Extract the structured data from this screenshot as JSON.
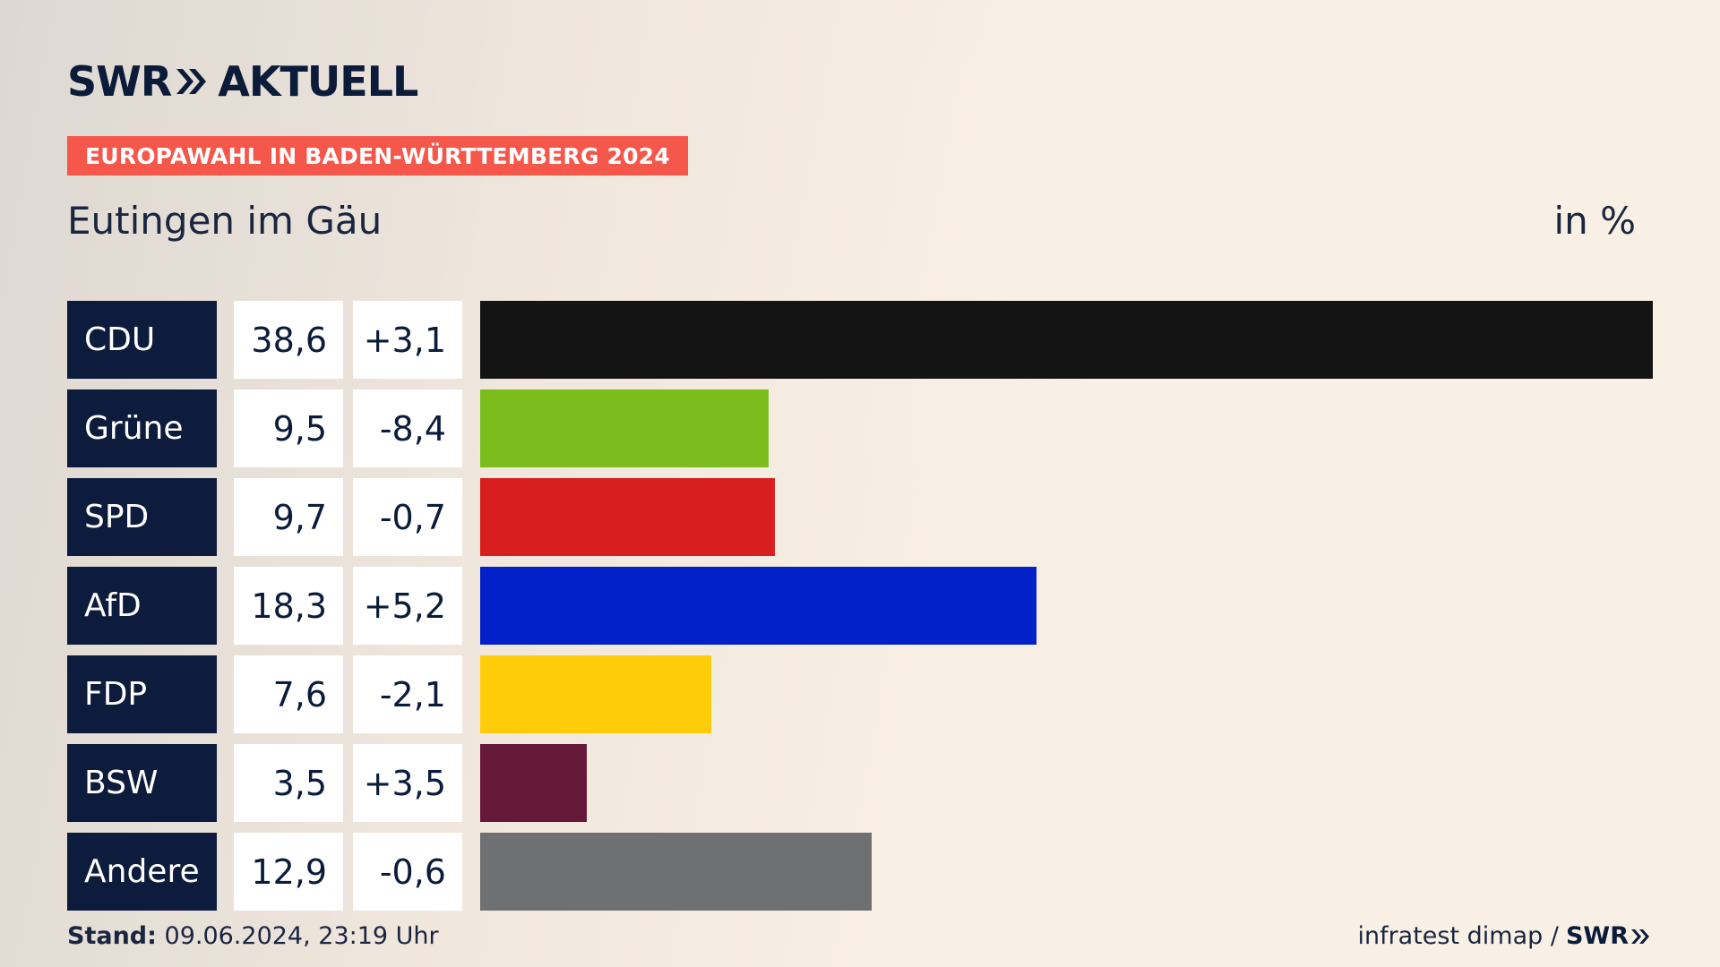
{
  "brand": {
    "name": "SWR",
    "product": "AKTUELL"
  },
  "badge": "EUROPAWAHL IN BADEN-WÜRTTEMBERG 2024",
  "place": "Eutingen im Gäu",
  "unit": "in %",
  "footer": {
    "stand_label": "Stand:",
    "stand_value": "09.06.2024, 23:19 Uhr",
    "source": "infratest dimap /",
    "source_brand": "SWR"
  },
  "chart_data": {
    "type": "bar",
    "orientation": "horizontal",
    "categories": [
      "CDU",
      "Grüne",
      "SPD",
      "AfD",
      "FDP",
      "BSW",
      "Andere"
    ],
    "values": [
      38.6,
      9.5,
      9.7,
      18.3,
      7.6,
      3.5,
      12.9
    ],
    "value_labels": [
      "38,6",
      "9,5",
      "9,7",
      "18,3",
      "7,6",
      "3,5",
      "12,9"
    ],
    "changes": [
      3.1,
      -8.4,
      -0.7,
      5.2,
      -2.1,
      3.5,
      -0.6
    ],
    "change_labels": [
      "+3,1",
      "-8,4",
      "-0,7",
      "+5,2",
      "-2,1",
      "+3,5",
      "-0,6"
    ],
    "colors": [
      "#141414",
      "#7bbd1c",
      "#d71f1f",
      "#0021c8",
      "#ffcc0a",
      "#661839",
      "#6f7072"
    ],
    "xlim": [
      0,
      38.6
    ]
  }
}
